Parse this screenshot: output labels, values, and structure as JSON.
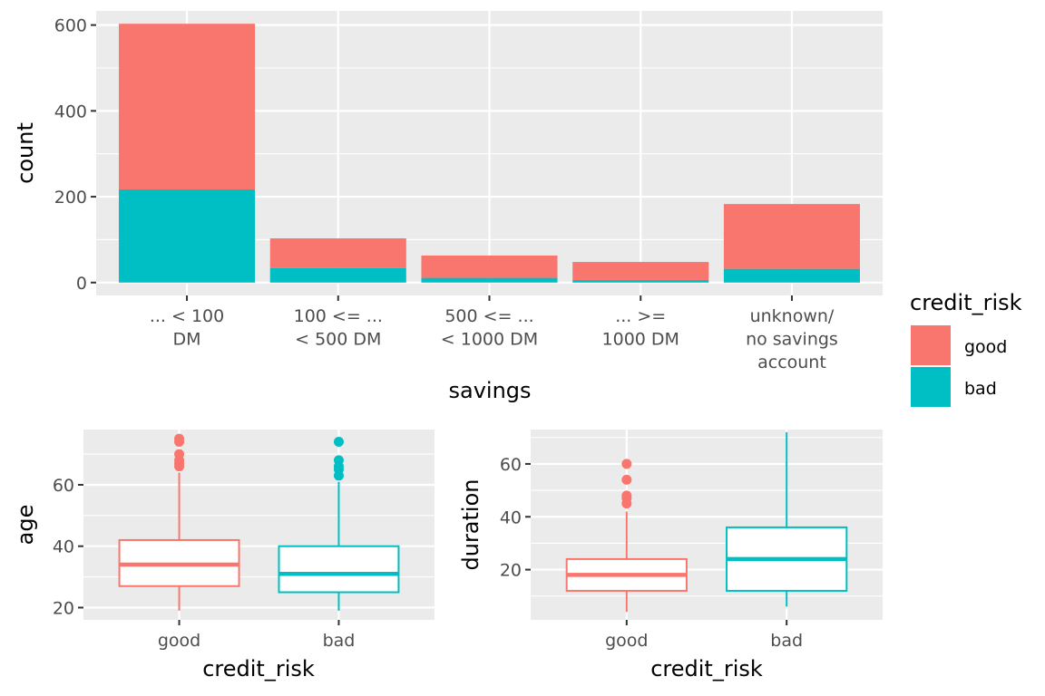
{
  "chart_data": [
    {
      "type": "bar",
      "stacked": true,
      "categories": [
        [
          "... < 100",
          "DM"
        ],
        [
          "100 <= ...",
          "< 500 DM"
        ],
        [
          "500 <= ...",
          "< 1000 DM"
        ],
        [
          "... >=",
          "1000 DM"
        ],
        [
          "unknown/",
          "no savings",
          "account"
        ]
      ],
      "series": [
        {
          "name": "bad",
          "color": "#00BFC4",
          "values": [
            217,
            34,
            11,
            6,
            32
          ]
        },
        {
          "name": "good",
          "color": "#F8766D",
          "values": [
            386,
            69,
            52,
            42,
            151
          ]
        }
      ],
      "xlabel": "savings",
      "ylabel": "count",
      "yticks": [
        0,
        200,
        400,
        600
      ],
      "ylim": [
        -30,
        633
      ],
      "grid": true,
      "legend": {
        "title": "credit_risk",
        "entries": [
          "good",
          "bad"
        ],
        "position": "right"
      }
    },
    {
      "type": "boxplot",
      "categories": [
        "good",
        "bad"
      ],
      "colors": [
        "#F8766D",
        "#00BFC4"
      ],
      "boxes": [
        {
          "min": 19,
          "q1": 27,
          "median": 34,
          "q3": 42,
          "max": 64,
          "outliers": [
            66,
            67,
            68,
            70,
            74,
            75
          ]
        },
        {
          "min": 19,
          "q1": 25,
          "median": 31,
          "q3": 40,
          "max": 61,
          "outliers": [
            63,
            65,
            66,
            68,
            74
          ]
        }
      ],
      "xlabel": "credit_risk",
      "ylabel": "age",
      "yticks": [
        20,
        40,
        60
      ],
      "ylim": [
        16,
        78
      ],
      "grid": true
    },
    {
      "type": "boxplot",
      "categories": [
        "good",
        "bad"
      ],
      "colors": [
        "#F8766D",
        "#00BFC4"
      ],
      "boxes": [
        {
          "min": 4,
          "q1": 12,
          "median": 18,
          "q3": 24,
          "max": 42,
          "outliers": [
            45,
            47,
            48,
            54,
            60
          ]
        },
        {
          "min": 6,
          "q1": 12,
          "median": 24,
          "q3": 36,
          "max": 72,
          "outliers": []
        }
      ],
      "xlabel": "credit_risk",
      "ylabel": "duration",
      "yticks": [
        20,
        40,
        60
      ],
      "ylim": [
        1,
        73
      ],
      "grid": true
    }
  ]
}
